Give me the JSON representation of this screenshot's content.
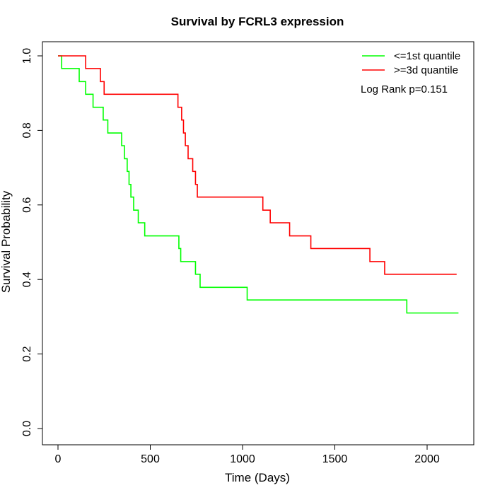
{
  "chart_data": {
    "type": "line",
    "step": true,
    "title": "Survival by FCRL3 expression",
    "xlabel": "Time (Days)",
    "ylabel": "Survival Probability",
    "xlim": [
      0,
      2170
    ],
    "ylim": [
      0,
      1
    ],
    "x_ticks": [
      0,
      500,
      1000,
      1500,
      2000
    ],
    "x_tick_labels": [
      "0",
      "500",
      "1000",
      "1500",
      "2000"
    ],
    "y_ticks": [
      0,
      0.2,
      0.4,
      0.6,
      0.8,
      1
    ],
    "y_tick_labels": [
      "0.0",
      "0.2",
      "0.4",
      "0.6",
      "0.8",
      "1.0"
    ],
    "legend_position": "top-right",
    "annotation": "Log Rank p=0.151",
    "series": [
      {
        "name": "<=1st quantile",
        "color": "#00ff00",
        "x": [
          0,
          20,
          115,
          150,
          190,
          245,
          270,
          345,
          360,
          375,
          385,
          395,
          410,
          435,
          470,
          525,
          655,
          665,
          745,
          770,
          1025,
          1890,
          2170
        ],
        "y": [
          1.0,
          0.966,
          0.931,
          0.897,
          0.862,
          0.828,
          0.793,
          0.759,
          0.724,
          0.69,
          0.655,
          0.621,
          0.586,
          0.552,
          0.517,
          0.517,
          0.483,
          0.448,
          0.414,
          0.379,
          0.345,
          0.31,
          0.31
        ]
      },
      {
        "name": ">=3d quantile",
        "color": "#ff0000",
        "x": [
          0,
          150,
          230,
          250,
          650,
          670,
          680,
          690,
          705,
          730,
          745,
          755,
          790,
          1110,
          1150,
          1255,
          1370,
          1690,
          1770,
          2160
        ],
        "y": [
          1.0,
          0.966,
          0.931,
          0.897,
          0.862,
          0.828,
          0.793,
          0.759,
          0.724,
          0.69,
          0.655,
          0.621,
          0.621,
          0.586,
          0.552,
          0.517,
          0.483,
          0.448,
          0.414,
          0.414
        ]
      }
    ]
  }
}
